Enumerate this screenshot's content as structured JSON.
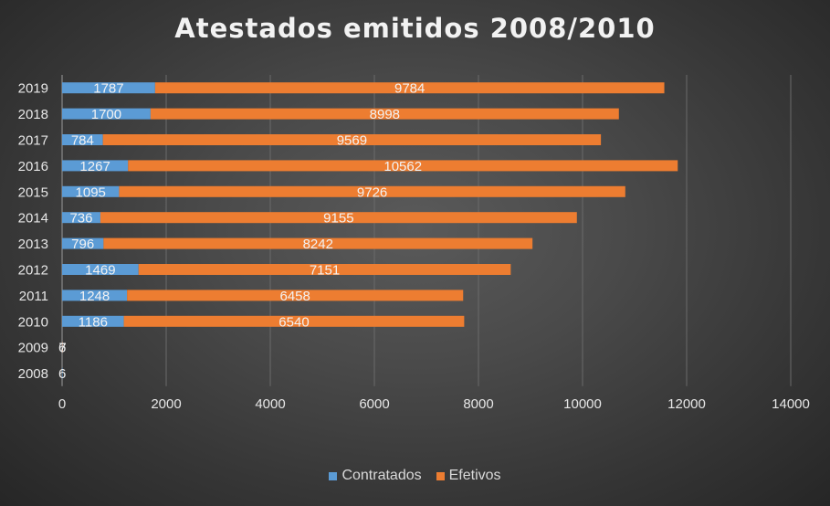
{
  "chart_data": {
    "type": "bar",
    "orientation": "horizontal",
    "stacked": true,
    "title": "Atestados emitidos 2008/2010",
    "categories": [
      "2008",
      "2009",
      "2010",
      "2011",
      "2012",
      "2013",
      "2014",
      "2015",
      "2016",
      "2017",
      "2018",
      "2019"
    ],
    "series": [
      {
        "name": "Contratados",
        "color": "#5b9bd5",
        "values": [
          6,
          6,
          1186,
          1248,
          1469,
          796,
          736,
          1095,
          1267,
          784,
          1700,
          1787
        ],
        "labels": [
          "6",
          "6",
          "1186",
          "1248",
          "1469",
          "796",
          "736",
          "1095",
          "1267",
          "784",
          "1700",
          "1787"
        ]
      },
      {
        "name": "Efetivos",
        "color": "#ed7d31",
        "values": [
          0,
          7,
          6540,
          6458,
          7151,
          8242,
          9155,
          9726,
          10562,
          9569,
          8998,
          9784
        ],
        "labels": [
          "",
          "7",
          "6540",
          "6458",
          "7151",
          "8242",
          "9155",
          "9726",
          "10562",
          "9569",
          "8998",
          "9784"
        ]
      }
    ],
    "x_ticks": [
      "0",
      "2000",
      "4000",
      "6000",
      "8000",
      "10000",
      "12000",
      "14000"
    ],
    "xlim": [
      0,
      14000
    ],
    "xlabel": "",
    "ylabel": "",
    "grid": true,
    "legend_position": "bottom"
  }
}
